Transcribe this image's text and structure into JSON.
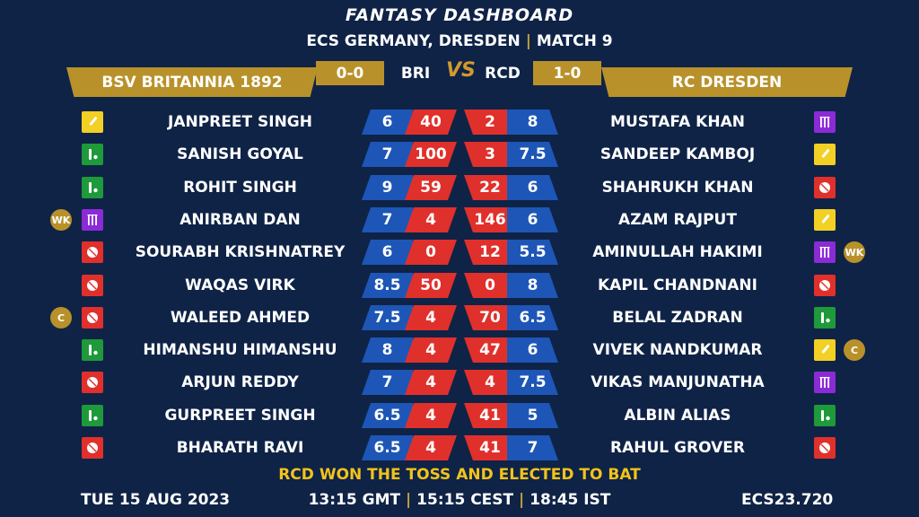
{
  "header": {
    "title": "FANTASY DASHBOARD",
    "subtitle_event": "ECS GERMANY, DRESDEN",
    "subtitle_separator": "|",
    "subtitle_match": "MATCH 9"
  },
  "teams": {
    "left": {
      "name": "BSV BRITANNIA 1892",
      "abbr": "BRI",
      "record": "0-0"
    },
    "right": {
      "name": "RC DRESDEN",
      "abbr": "RCD",
      "record": "1-0"
    },
    "vs_text": "VS"
  },
  "colors": {
    "background": "#0f2347",
    "gold": "#b8912a",
    "red": "#e0302b",
    "blue": "#1d56b6",
    "batsman": "#f2d024",
    "bowler": "#e0302b",
    "wicketkeeper": "#1e9a3a",
    "allrounder": "#8b2bd6",
    "toss_text": "#f2c31a"
  },
  "players": [
    {
      "left": {
        "name": "JANPREET SINGH",
        "role": "bat-icon",
        "badge": "",
        "v1": "6",
        "v2": "40"
      },
      "right": {
        "name": "MUSTAFA KHAN",
        "role": "stumps-icon",
        "badge": "",
        "v1": "2",
        "v2": "8"
      }
    },
    {
      "left": {
        "name": "SANISH GOYAL",
        "role": "batball-icon",
        "badge": "",
        "v1": "7",
        "v2": "100"
      },
      "right": {
        "name": "SANDEEP KAMBOJ",
        "role": "bat-icon",
        "badge": "",
        "v1": "3",
        "v2": "7.5"
      }
    },
    {
      "left": {
        "name": "ROHIT SINGH",
        "role": "batball-icon",
        "badge": "",
        "v1": "9",
        "v2": "59"
      },
      "right": {
        "name": "SHAHRUKH KHAN",
        "role": "ball-icon",
        "badge": "",
        "v1": "22",
        "v2": "6"
      }
    },
    {
      "left": {
        "name": "ANIRBAN DAN",
        "role": "stumps-icon",
        "badge": "WK",
        "v1": "7",
        "v2": "4"
      },
      "right": {
        "name": "AZAM RAJPUT",
        "role": "bat-icon",
        "badge": "",
        "v1": "146",
        "v2": "6"
      }
    },
    {
      "left": {
        "name": "SOURABH KRISHNATREY",
        "role": "ball-icon",
        "badge": "",
        "v1": "6",
        "v2": "0"
      },
      "right": {
        "name": "AMINULLAH HAKIMI",
        "role": "stumps-icon",
        "badge": "WK",
        "v1": "12",
        "v2": "5.5"
      }
    },
    {
      "left": {
        "name": "WAQAS VIRK",
        "role": "ball-icon",
        "badge": "",
        "v1": "8.5",
        "v2": "50"
      },
      "right": {
        "name": "KAPIL CHANDNANI",
        "role": "ball-icon",
        "badge": "",
        "v1": "0",
        "v2": "8"
      }
    },
    {
      "left": {
        "name": "WALEED AHMED",
        "role": "ball-icon",
        "badge": "C",
        "v1": "7.5",
        "v2": "4"
      },
      "right": {
        "name": "BELAL ZADRAN",
        "role": "batball-icon",
        "badge": "",
        "v1": "70",
        "v2": "6.5"
      }
    },
    {
      "left": {
        "name": "HIMANSHU HIMANSHU",
        "role": "batball-icon",
        "badge": "",
        "v1": "8",
        "v2": "4"
      },
      "right": {
        "name": "VIVEK NANDKUMAR",
        "role": "bat-icon",
        "badge": "C",
        "v1": "47",
        "v2": "6"
      }
    },
    {
      "left": {
        "name": "ARJUN REDDY",
        "role": "ball-icon",
        "badge": "",
        "v1": "7",
        "v2": "4"
      },
      "right": {
        "name": "VIKAS MANJUNATHA",
        "role": "stumps-icon",
        "badge": "",
        "v1": "4",
        "v2": "7.5"
      }
    },
    {
      "left": {
        "name": "GURPREET SINGH",
        "role": "batball-icon",
        "badge": "",
        "v1": "6.5",
        "v2": "4"
      },
      "right": {
        "name": "ALBIN ALIAS",
        "role": "batball-icon",
        "badge": "",
        "v1": "41",
        "v2": "5"
      }
    },
    {
      "left": {
        "name": "BHARATH RAVI",
        "role": "ball-icon",
        "badge": "",
        "v1": "6.5",
        "v2": "4"
      },
      "right": {
        "name": "RAHUL GROVER",
        "role": "ball-icon",
        "badge": "",
        "v1": "41",
        "v2": "7"
      }
    }
  ],
  "footer": {
    "toss": "RCD WON THE TOSS AND ELECTED TO BAT",
    "date": "TUE 15 AUG 2023",
    "time_gmt": "13:15 GMT",
    "time_cest": "15:15 CEST",
    "time_ist": "18:45 IST",
    "separator": "|",
    "code": "ECS23.720"
  }
}
